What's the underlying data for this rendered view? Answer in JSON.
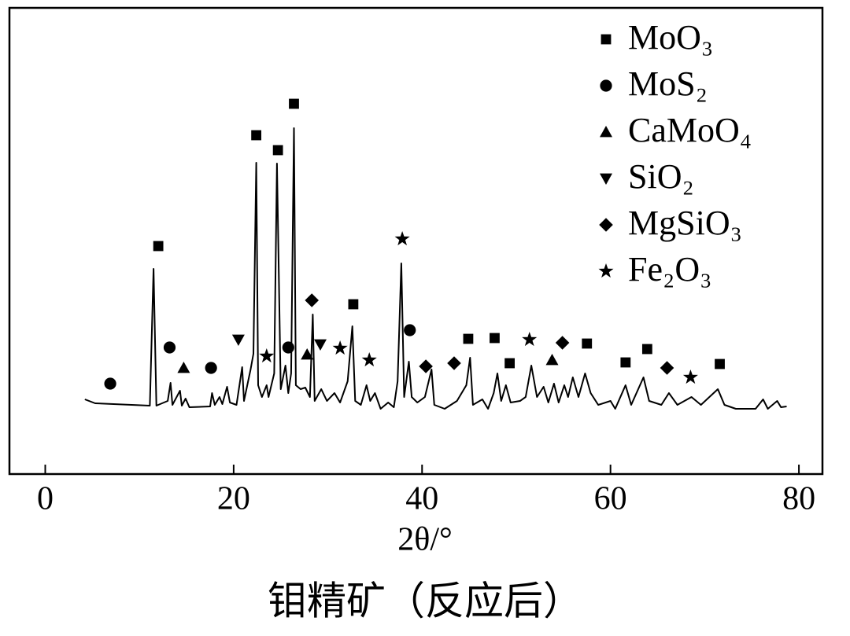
{
  "chart_data": {
    "type": "line",
    "title": "钼精矿（反应后）",
    "x_label": "2θ/°",
    "color": "#000000",
    "xlim": [
      -3.8,
      82.5
    ],
    "xticks": [
      0,
      20,
      40,
      60,
      80
    ],
    "ylim": [
      0,
      593
    ],
    "legend": "upper right",
    "x": [
      4.2,
      5.3,
      11.1,
      11.5,
      11.8,
      13.0,
      13.3,
      13.5,
      14.3,
      14.5,
      14.9,
      15.3,
      17.5,
      17.7,
      18.0,
      18.5,
      18.8,
      19.3,
      19.6,
      20.3,
      20.9,
      21.1,
      21.8,
      22.1,
      22.4,
      22.6,
      23.0,
      23.5,
      23.7,
      24.3,
      24.6,
      25.0,
      25.5,
      25.8,
      26.1,
      26.4,
      26.6,
      27.1,
      27.6,
      28.1,
      28.4,
      28.6,
      29.3,
      29.9,
      30.7,
      31.3,
      32.1,
      32.6,
      32.9,
      33.5,
      34.1,
      34.5,
      35.0,
      35.6,
      36.4,
      37.0,
      37.4,
      37.8,
      38.1,
      38.6,
      38.9,
      39.5,
      40.3,
      41.0,
      41.3,
      42.4,
      43.7,
      44.7,
      45.1,
      45.4,
      46.4,
      47.0,
      47.6,
      48.0,
      48.4,
      48.9,
      49.4,
      50.4,
      51.0,
      51.6,
      52.2,
      52.9,
      53.4,
      54.0,
      54.5,
      55.1,
      55.5,
      56.0,
      56.6,
      57.3,
      57.9,
      58.7,
      60.0,
      60.5,
      61.6,
      62.2,
      63.5,
      64.1,
      65.4,
      66.2,
      67.1,
      68.6,
      69.6,
      71.4,
      72.1,
      73.3,
      75.4,
      76.2,
      76.7,
      77.7,
      78.1,
      78.7
    ],
    "values": [
      95,
      90,
      87,
      261,
      87,
      93,
      116,
      88,
      106,
      87,
      96,
      85,
      86,
      103,
      88,
      98,
      89,
      111,
      91,
      88,
      136,
      93,
      133,
      153,
      396,
      113,
      98,
      113,
      98,
      128,
      395,
      108,
      138,
      103,
      128,
      440,
      113,
      108,
      110,
      98,
      203,
      93,
      108,
      93,
      103,
      91,
      118,
      188,
      93,
      88,
      113,
      93,
      103,
      83,
      91,
      85,
      118,
      268,
      98,
      143,
      98,
      91,
      98,
      133,
      88,
      83,
      93,
      113,
      148,
      88,
      95,
      83,
      103,
      128,
      93,
      113,
      91,
      93,
      98,
      138,
      98,
      111,
      91,
      115,
      91,
      113,
      98,
      123,
      98,
      128,
      103,
      88,
      93,
      83,
      113,
      88,
      123,
      93,
      88,
      103,
      88,
      98,
      88,
      108,
      88,
      83,
      83,
      95,
      83,
      93,
      85,
      86
    ],
    "series": [
      {
        "name": "MoO₃",
        "marker": "square",
        "color": "#000000",
        "x": [
          12.0,
          22.4,
          24.7,
          26.4,
          32.7,
          44.9,
          47.7,
          49.3,
          57.5,
          61.6,
          63.9,
          71.6
        ],
        "values": [
          290,
          431,
          412,
          471,
          216,
          172,
          173,
          141,
          166,
          142,
          159,
          140
        ]
      },
      {
        "name": "MoS₂",
        "marker": "circle",
        "color": "#000000",
        "x": [
          6.9,
          13.2,
          17.6,
          25.8,
          38.7
        ],
        "values": [
          115,
          161,
          135,
          161,
          183
        ]
      },
      {
        "name": "CaMoO₄",
        "marker": "triangle-up",
        "color": "#000000",
        "x": [
          14.7,
          27.8,
          53.8
        ],
        "values": [
          135,
          152,
          145
        ]
      },
      {
        "name": "SiO₂",
        "marker": "triangle-down",
        "color": "#000000",
        "x": [
          20.5,
          29.2
        ],
        "values": [
          171,
          165
        ]
      },
      {
        "name": "MgSiO₃",
        "marker": "diamond",
        "color": "#000000",
        "x": [
          28.3,
          40.4,
          43.4,
          54.9,
          66.0
        ],
        "values": [
          221,
          137,
          141,
          167,
          135
        ]
      },
      {
        "name": "Fe₂O₃",
        "marker": "star",
        "color": "#000000",
        "x": [
          23.5,
          31.3,
          34.4,
          37.9,
          51.4,
          68.5
        ],
        "values": [
          150,
          160,
          145,
          299,
          171,
          123
        ]
      }
    ]
  }
}
